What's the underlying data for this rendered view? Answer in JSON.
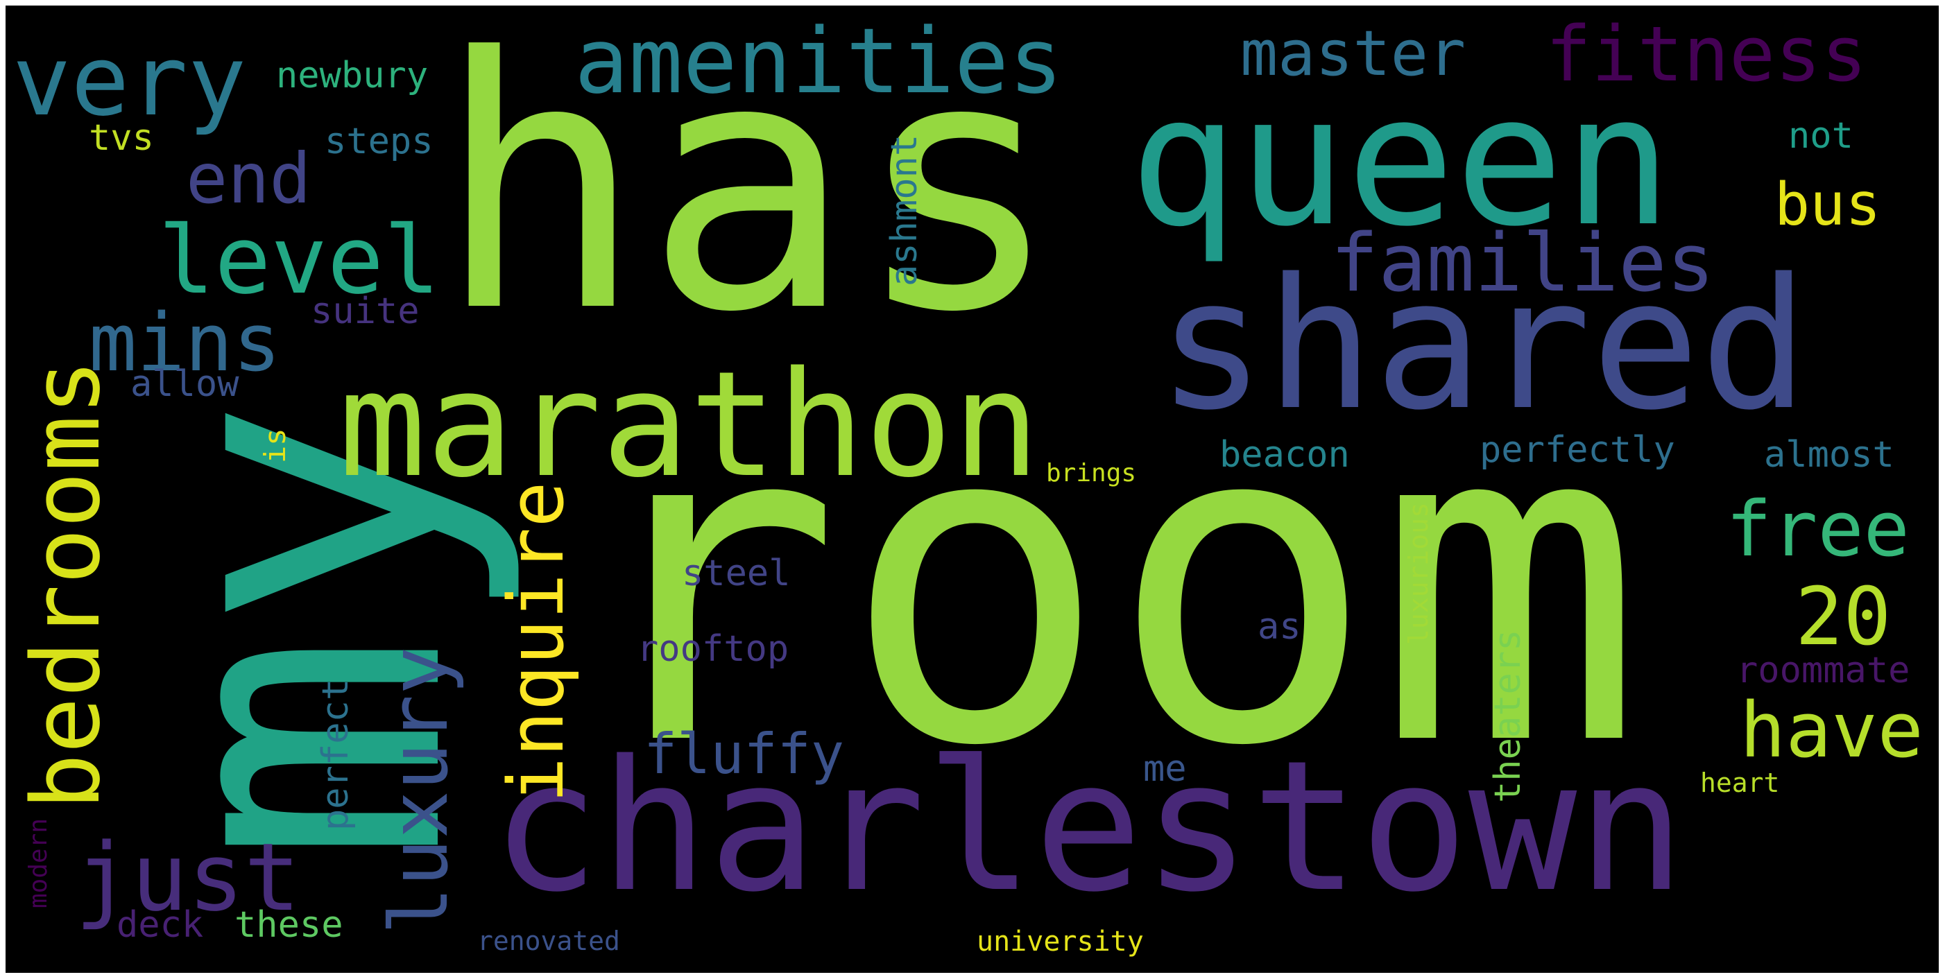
{
  "wordcloud": {
    "words": [
      {
        "id": "room",
        "text": "room",
        "color": "#95d840"
      },
      {
        "id": "has",
        "text": "has",
        "color": "#95d840"
      },
      {
        "id": "my",
        "text": "my",
        "color": "#20a386"
      },
      {
        "id": "charlestown",
        "text": "charlestown",
        "color": "#482878"
      },
      {
        "id": "shared",
        "text": "shared",
        "color": "#3e4a89"
      },
      {
        "id": "queen",
        "text": "queen",
        "color": "#1f9a8a"
      },
      {
        "id": "marathon",
        "text": "marathon",
        "color": "#a0da39"
      },
      {
        "id": "amenities",
        "text": "amenities",
        "color": "#27808e"
      },
      {
        "id": "very",
        "text": "very",
        "color": "#2a788e"
      },
      {
        "id": "fitness",
        "text": "fitness",
        "color": "#440154"
      },
      {
        "id": "master",
        "text": "master",
        "color": "#2e6e8e"
      },
      {
        "id": "families",
        "text": "families",
        "color": "#414487"
      },
      {
        "id": "level",
        "text": "level",
        "color": "#22a884"
      },
      {
        "id": "end",
        "text": "end",
        "color": "#414487"
      },
      {
        "id": "bedrooms",
        "text": "bedrooms",
        "color": "#d8e219"
      },
      {
        "id": "mins",
        "text": "mins",
        "color": "#31688e"
      },
      {
        "id": "inquire",
        "text": "inquire",
        "color": "#fde725"
      },
      {
        "id": "luxury",
        "text": "luxury",
        "color": "#3b528b"
      },
      {
        "id": "just",
        "text": "just",
        "color": "#472d7b"
      },
      {
        "id": "have",
        "text": "have",
        "color": "#b5de2b"
      },
      {
        "id": "free",
        "text": "free",
        "color": "#35b779"
      },
      {
        "id": "20",
        "text": "20",
        "color": "#b5de2b"
      },
      {
        "id": "bus",
        "text": "bus",
        "color": "#e5e419"
      },
      {
        "id": "fluffy",
        "text": "fluffy",
        "color": "#3b528b"
      },
      {
        "id": "newbury",
        "text": "newbury",
        "color": "#2db27d"
      },
      {
        "id": "steps",
        "text": "steps",
        "color": "#2c728e"
      },
      {
        "id": "tvs",
        "text": "tvs",
        "color": "#c2df23"
      },
      {
        "id": "suite",
        "text": "suite",
        "color": "#46337f"
      },
      {
        "id": "allow",
        "text": "allow",
        "color": "#3b528b"
      },
      {
        "id": "is",
        "text": "is",
        "color": "#e5e419"
      },
      {
        "id": "ashmont",
        "text": "ashmont",
        "color": "#2a788e"
      },
      {
        "id": "beacon",
        "text": "beacon",
        "color": "#25858e"
      },
      {
        "id": "perfectly",
        "text": "perfectly",
        "color": "#2e6e8e"
      },
      {
        "id": "almost",
        "text": "almost",
        "color": "#2c728e"
      },
      {
        "id": "not",
        "text": "not",
        "color": "#1f9e89"
      },
      {
        "id": "brings",
        "text": "brings",
        "color": "#c8e020"
      },
      {
        "id": "steel",
        "text": "steel",
        "color": "#414487"
      },
      {
        "id": "rooftop",
        "text": "rooftop",
        "color": "#443983"
      },
      {
        "id": "theaters",
        "text": "theaters",
        "color": "#7ad151"
      },
      {
        "id": "luxurious",
        "text": "luxurious",
        "color": "#a2da37"
      },
      {
        "id": "as",
        "text": "as",
        "color": "#404688"
      },
      {
        "id": "roommate",
        "text": "roommate",
        "color": "#481668"
      },
      {
        "id": "perfect",
        "text": "perfect",
        "color": "#2c728e"
      },
      {
        "id": "me",
        "text": "me",
        "color": "#39568c"
      },
      {
        "id": "heart",
        "text": "heart",
        "color": "#b8de29"
      },
      {
        "id": "modern",
        "text": "modern",
        "color": "#440154"
      },
      {
        "id": "deck",
        "text": "deck",
        "color": "#482173"
      },
      {
        "id": "these",
        "text": "these",
        "color": "#5ec962"
      },
      {
        "id": "renovated",
        "text": "renovated",
        "color": "#3b528b"
      },
      {
        "id": "university",
        "text": "university",
        "color": "#e5e419"
      }
    ]
  }
}
